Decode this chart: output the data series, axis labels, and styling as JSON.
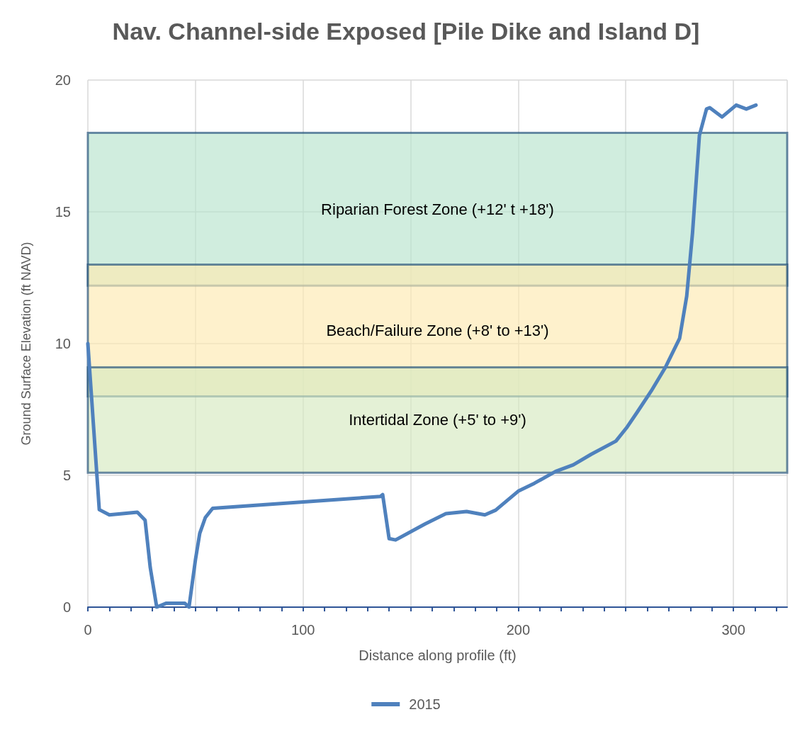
{
  "chart_data": {
    "type": "line",
    "title": "Nav. Channel-side Exposed [Pile Dike and Island D]",
    "xlabel": "Distance along profile (ft)",
    "ylabel": "Ground Surface Elevation (ft NAVD)",
    "series": [
      {
        "name": "2015",
        "color": "#4f81bd",
        "x": [
          0,
          5.3,
          10,
          23,
          26.6,
          29,
          32,
          36.5,
          45,
          47,
          50,
          52,
          54.6,
          58,
          136,
          137,
          140,
          143,
          156.6,
          166.4,
          176,
          184.5,
          189.5,
          200,
          207.5,
          217.4,
          225.6,
          233.9,
          245.4,
          250.3,
          255.3,
          261.8,
          268.4,
          275,
          278.3,
          281,
          284.2,
          287.5,
          289,
          294.7,
          301.3,
          306,
          310.5
        ],
        "values": [
          10,
          3.7,
          3.5,
          3.6,
          3.3,
          1.5,
          0,
          0.15,
          0.15,
          0,
          1.8,
          2.8,
          3.4,
          3.75,
          4.2,
          4.27,
          2.6,
          2.55,
          3.15,
          3.55,
          3.63,
          3.5,
          3.68,
          4.4,
          4.7,
          5.15,
          5.4,
          5.8,
          6.3,
          6.8,
          7.4,
          8.2,
          9.1,
          10.2,
          11.8,
          14.2,
          17.9,
          18.9,
          18.95,
          18.6,
          19.05,
          18.9,
          19.05
        ]
      }
    ],
    "bands": [
      {
        "axis": "y",
        "from": 12.2,
        "to": 18,
        "label": "Riparian Forest Zone (+12' t +18')",
        "color": "#b7e4cd"
      },
      {
        "axis": "y",
        "from": 8,
        "to": 13,
        "label": "Beach/Failure Zone (+8' to +13')",
        "color": "#fde9b0"
      },
      {
        "axis": "y",
        "from": 5.1,
        "to": 9.1,
        "label": "Intertidal Zone (+5' to +9')",
        "color": "#d5eac0"
      }
    ],
    "xlim": [
      0,
      325
    ],
    "xticks": [
      0,
      {
        "value": 10,
        "label": null
      },
      {
        "value": 20,
        "label": null
      },
      {
        "value": 30,
        "label": null
      },
      {
        "value": 40,
        "label": null
      },
      {
        "value": 50,
        "label": null
      },
      {
        "value": 60,
        "label": null
      },
      {
        "value": 70,
        "label": null
      },
      {
        "value": 80,
        "label": null
      },
      {
        "value": 90,
        "label": null
      },
      100,
      {
        "value": 110,
        "label": null
      },
      {
        "value": 120,
        "label": null
      },
      {
        "value": 130,
        "label": null
      },
      {
        "value": 140,
        "label": null
      },
      {
        "value": 150,
        "label": null
      },
      {
        "value": 160,
        "label": null
      },
      {
        "value": 170,
        "label": null
      },
      {
        "value": 180,
        "label": null
      },
      {
        "value": 190,
        "label": null
      },
      200,
      {
        "value": 210,
        "label": null
      },
      {
        "value": 220,
        "label": null
      },
      {
        "value": 230,
        "label": null
      },
      {
        "value": 240,
        "label": null
      },
      {
        "value": 250,
        "label": null
      },
      {
        "value": 260,
        "label": null
      },
      {
        "value": 270,
        "label": null
      },
      {
        "value": 280,
        "label": null
      },
      {
        "value": 290,
        "label": null
      },
      300,
      {
        "value": 310,
        "label": null
      },
      {
        "value": 320,
        "label": null
      }
    ],
    "ylim": [
      0,
      20
    ],
    "yticks": [
      0,
      5,
      10,
      15,
      20
    ],
    "grid": true,
    "legend": "bottom",
    "marker": "none",
    "line_style": "solid"
  }
}
